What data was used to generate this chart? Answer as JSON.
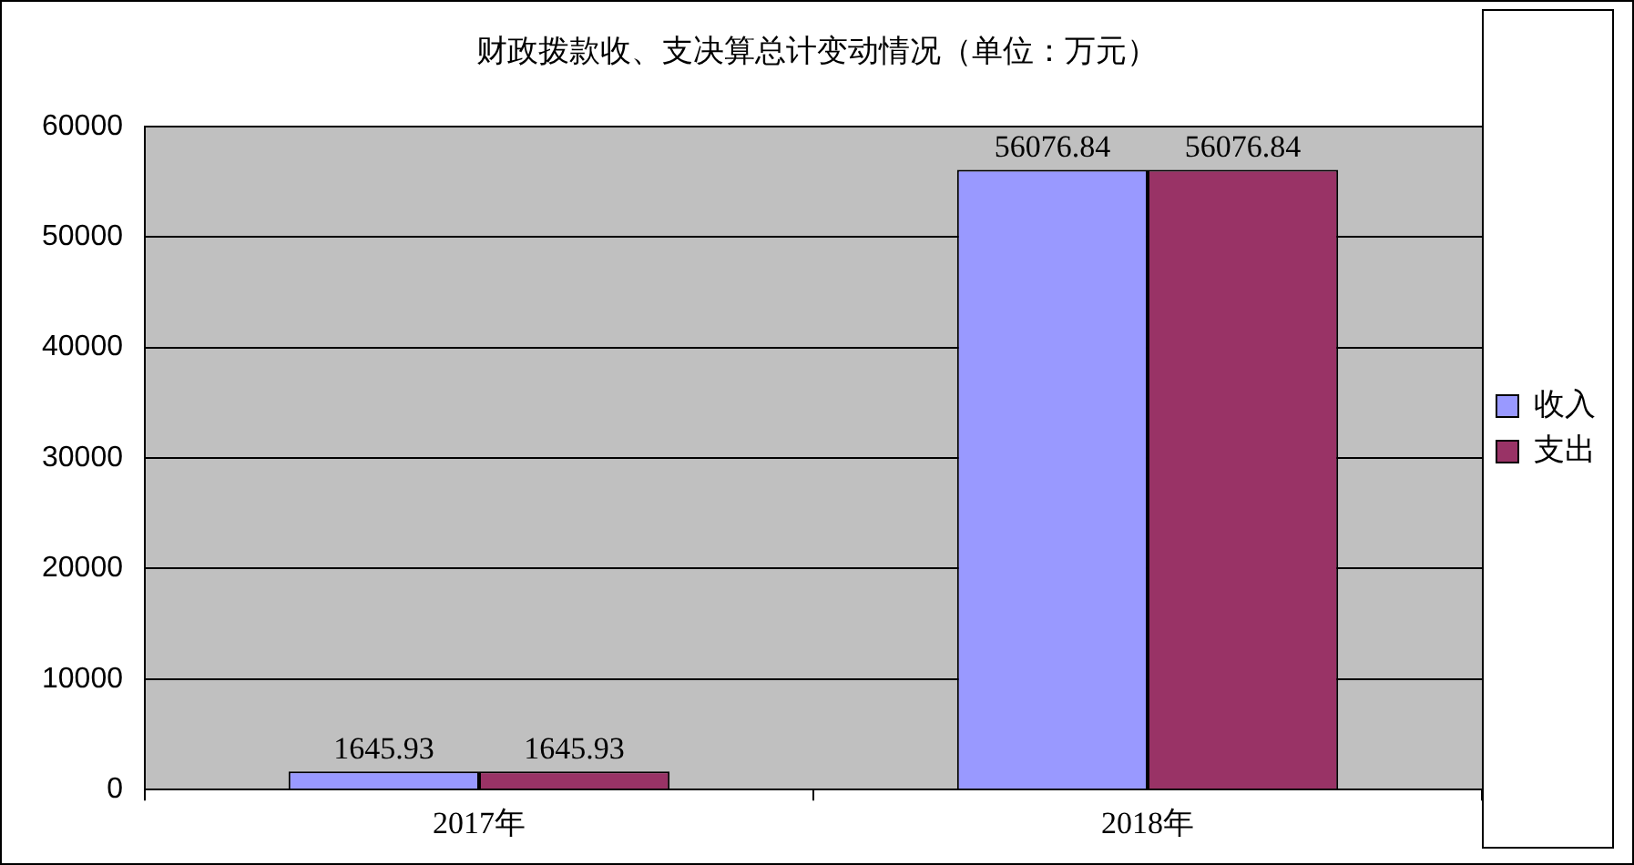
{
  "chart_data": {
    "type": "bar",
    "title": "财政拨款收、支决算总计变动情况（单位：万元）",
    "categories": [
      "2017年",
      "2018年"
    ],
    "series": [
      {
        "name": "收入",
        "color": "#9999ff",
        "values": [
          1645.93,
          56076.84
        ]
      },
      {
        "name": "支出",
        "color": "#993366",
        "values": [
          1645.93,
          56076.84
        ]
      }
    ],
    "ylim": [
      0,
      60000
    ],
    "yticks": [
      0,
      10000,
      20000,
      30000,
      40000,
      50000,
      60000
    ],
    "grid": "y",
    "legend": "right",
    "data_labels": true
  }
}
